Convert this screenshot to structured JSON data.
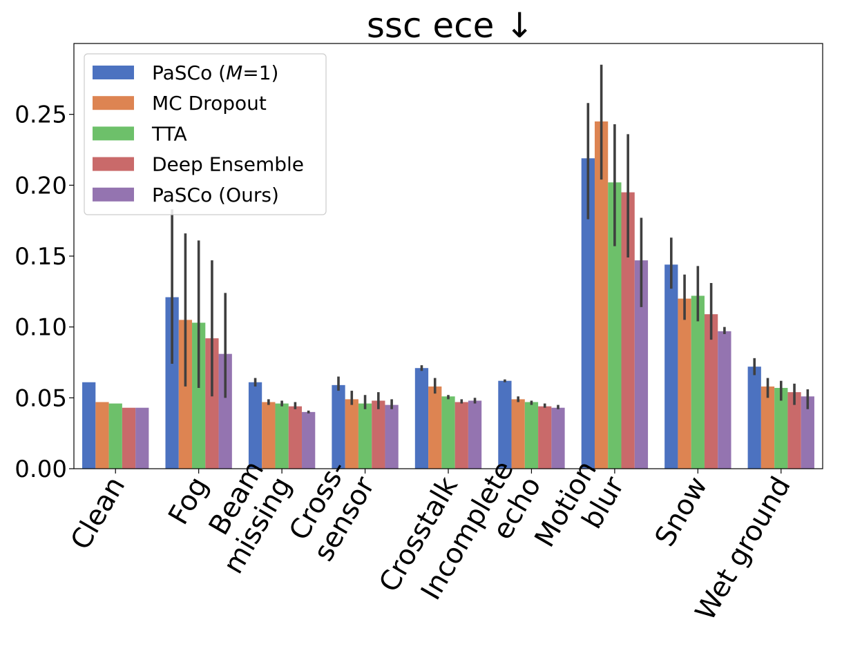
{
  "chart_data": {
    "type": "bar",
    "title": "ssc ece ↓",
    "xlabel": "",
    "ylabel": "",
    "ylim": [
      0,
      0.3
    ],
    "yticks": [
      "0.00",
      "0.05",
      "0.10",
      "0.15",
      "0.20",
      "0.25"
    ],
    "categories": [
      [
        "Clean"
      ],
      [
        "Fog"
      ],
      [
        "Beam",
        "missing"
      ],
      [
        "Cross-",
        "sensor"
      ],
      [
        "Crosstalk"
      ],
      [
        "Incomplete",
        "echo"
      ],
      [
        "Motion",
        "blur"
      ],
      [
        "Snow"
      ],
      [
        "Wet ground"
      ]
    ],
    "legend_position": "top-left",
    "series": [
      {
        "name": "PaSCo (M=1)",
        "legend_prefix": "PaSCo (",
        "legend_italic": "M",
        "legend_suffix": "=1)",
        "color": "#4c72c0",
        "values": [
          0.061,
          0.121,
          0.061,
          0.059,
          0.071,
          0.062,
          0.219,
          0.144,
          0.072
        ],
        "errors": [
          null,
          [
            0.074,
            0.183
          ],
          [
            0.058,
            0.064
          ],
          [
            0.055,
            0.065
          ],
          [
            0.069,
            0.073
          ],
          [
            0.061,
            0.063
          ],
          [
            0.176,
            0.258
          ],
          [
            0.127,
            0.163
          ],
          [
            0.066,
            0.078
          ]
        ]
      },
      {
        "name": "MC Dropout",
        "color": "#dd8452",
        "values": [
          0.047,
          0.105,
          0.047,
          0.049,
          0.058,
          0.049,
          0.245,
          0.12,
          0.058
        ],
        "errors": [
          null,
          [
            0.058,
            0.166
          ],
          [
            0.045,
            0.049
          ],
          [
            0.045,
            0.055
          ],
          [
            0.053,
            0.064
          ],
          [
            0.047,
            0.051
          ],
          [
            0.204,
            0.285
          ],
          [
            0.105,
            0.137
          ],
          [
            0.05,
            0.064
          ]
        ]
      },
      {
        "name": "TTA",
        "color": "#6dc06a",
        "values": [
          0.046,
          0.103,
          0.046,
          0.046,
          0.051,
          0.047,
          0.202,
          0.122,
          0.057
        ],
        "errors": [
          null,
          [
            0.057,
            0.161
          ],
          [
            0.044,
            0.048
          ],
          [
            0.042,
            0.052
          ],
          [
            0.049,
            0.052
          ],
          [
            0.045,
            0.048
          ],
          [
            0.157,
            0.243
          ],
          [
            0.104,
            0.143
          ],
          [
            0.048,
            0.062
          ]
        ]
      },
      {
        "name": "Deep Ensemble",
        "color": "#c96a6a",
        "values": [
          0.043,
          0.092,
          0.044,
          0.048,
          0.047,
          0.044,
          0.195,
          0.109,
          0.054
        ],
        "errors": [
          null,
          [
            0.051,
            0.147
          ],
          [
            0.042,
            0.047
          ],
          [
            0.042,
            0.054
          ],
          [
            0.046,
            0.049
          ],
          [
            0.043,
            0.046
          ],
          [
            0.149,
            0.236
          ],
          [
            0.091,
            0.131
          ],
          [
            0.045,
            0.06
          ]
        ]
      },
      {
        "name": "PaSCo (Ours)",
        "color": "#9474b0",
        "values": [
          0.043,
          0.081,
          0.04,
          0.045,
          0.048,
          0.043,
          0.147,
          0.097,
          0.051
        ],
        "errors": [
          null,
          [
            0.05,
            0.124
          ],
          [
            0.039,
            0.041
          ],
          [
            0.042,
            0.049
          ],
          [
            0.046,
            0.05
          ],
          [
            0.042,
            0.045
          ],
          [
            0.114,
            0.177
          ],
          [
            0.095,
            0.1
          ],
          [
            0.042,
            0.056
          ]
        ]
      }
    ]
  }
}
